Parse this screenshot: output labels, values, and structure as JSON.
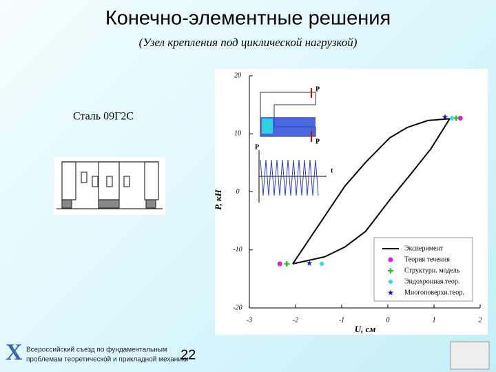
{
  "title": "Конечно-элементные решения",
  "subtitle": "(Узел крепления под циклической нагрузкой)",
  "material": "Сталь 09Г2С",
  "footer": {
    "logo": "X",
    "line1": "Всероссийский съезд по фундаментальным",
    "line2": "проблемам теоретической и прикладной механики",
    "page": "22"
  },
  "inset": {
    "force_top": "P",
    "force_bottom": "P",
    "load_axis": "P",
    "time_axis": "t"
  },
  "chart_data": {
    "type": "scatter",
    "xlabel": "U, см",
    "ylabel": "P, кН",
    "xlim": [
      -3,
      2
    ],
    "ylim": [
      -20,
      20
    ],
    "xticks": [
      -3,
      -2,
      -1,
      0,
      1,
      2
    ],
    "yticks": [
      -20,
      -10,
      0,
      10,
      20
    ],
    "grid": false,
    "legend": "lower right",
    "series": [
      {
        "name": "Эксперимент",
        "color": "#000000",
        "marker": "line",
        "x": [
          -2.06,
          -0.93,
          -0.48,
          0.04,
          0.42,
          0.87,
          1.34,
          0.94,
          0.52,
          0.04,
          -0.48,
          -0.93,
          -1.37,
          -2.06
        ],
        "values": [
          -12.4,
          1,
          5.1,
          9.3,
          11.1,
          12.3,
          12.6,
          7.5,
          3.3,
          -1.4,
          -6.8,
          -9.5,
          -11.2,
          -12.4
        ]
      },
      {
        "name": "Теория течения",
        "color": "#e020d0",
        "marker": "circle",
        "x": [
          -2.34,
          1.57
        ],
        "values": [
          -12.4,
          12.7
        ]
      },
      {
        "name": "Структурн. модель",
        "color": "#30c040",
        "marker": "plus",
        "x": [
          -2.19,
          1.48
        ],
        "values": [
          -12.4,
          12.7
        ]
      },
      {
        "name": "Эндохронная.теор.",
        "color": "#40d8d8",
        "marker": "diamond",
        "x": [
          -1.43,
          1.39
        ],
        "values": [
          -12.4,
          12.7
        ]
      },
      {
        "name": "Многоповерхн.теор.",
        "color": "#1a1aa0",
        "marker": "star",
        "x": [
          -1.7,
          1.24
        ],
        "values": [
          -12.3,
          12.9
        ]
      }
    ]
  }
}
